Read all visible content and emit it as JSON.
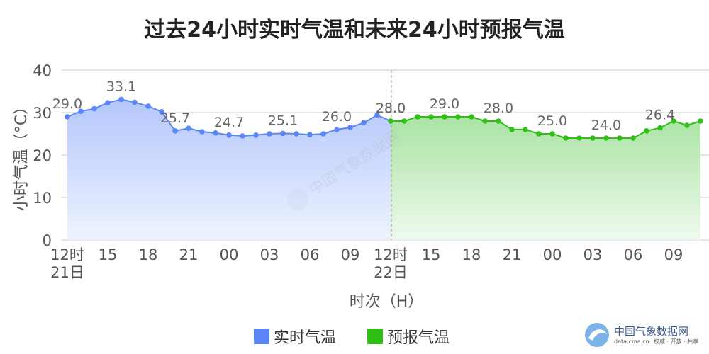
{
  "chart_data": {
    "type": "line",
    "title": "过去24小时实时气温和未来24小时预报气温",
    "xlabel": "时次（H）",
    "ylabel": "小时气温（°C）",
    "ylim": [
      0,
      40
    ],
    "yticks": [
      "0",
      "10",
      "20",
      "30",
      "40"
    ],
    "grid": true,
    "legend_position": "bottom",
    "xticks": [
      {
        "hour": 0,
        "label": "12时",
        "sub": "21日"
      },
      {
        "hour": 3,
        "label": "15",
        "sub": ""
      },
      {
        "hour": 6,
        "label": "18",
        "sub": ""
      },
      {
        "hour": 9,
        "label": "21",
        "sub": ""
      },
      {
        "hour": 12,
        "label": "00",
        "sub": ""
      },
      {
        "hour": 15,
        "label": "03",
        "sub": ""
      },
      {
        "hour": 18,
        "label": "06",
        "sub": ""
      },
      {
        "hour": 21,
        "label": "09",
        "sub": ""
      },
      {
        "hour": 24,
        "label": "12时",
        "sub": "22日"
      },
      {
        "hour": 27,
        "label": "15",
        "sub": ""
      },
      {
        "hour": 30,
        "label": "18",
        "sub": ""
      },
      {
        "hour": 33,
        "label": "21",
        "sub": ""
      },
      {
        "hour": 36,
        "label": "00",
        "sub": ""
      },
      {
        "hour": 39,
        "label": "03",
        "sub": ""
      },
      {
        "hour": 42,
        "label": "06",
        "sub": ""
      },
      {
        "hour": 45,
        "label": "09",
        "sub": ""
      }
    ],
    "series": [
      {
        "name": "实时气温",
        "color": "#5b86f7",
        "hours": [
          0,
          1,
          2,
          3,
          4,
          5,
          6,
          7,
          8,
          9,
          10,
          11,
          12,
          13,
          14,
          15,
          16,
          17,
          18,
          19,
          20,
          21,
          22,
          23,
          24
        ],
        "values": [
          29.0,
          30.3,
          30.9,
          32.3,
          33.1,
          32.4,
          31.5,
          30.2,
          25.7,
          26.3,
          25.5,
          25.2,
          24.7,
          24.5,
          24.7,
          25.0,
          25.1,
          25.0,
          24.8,
          25.0,
          26.0,
          26.5,
          27.6,
          29.4,
          28.0
        ],
        "labels": [
          {
            "hour": 0,
            "text": "29.0"
          },
          {
            "hour": 4,
            "text": "33.1"
          },
          {
            "hour": 8,
            "text": "25.7"
          },
          {
            "hour": 12,
            "text": "24.7"
          },
          {
            "hour": 16,
            "text": "25.1"
          },
          {
            "hour": 20,
            "text": "26.0"
          },
          {
            "hour": 24,
            "text": "28.0"
          }
        ]
      },
      {
        "name": "预报气温",
        "color": "#2fbf16",
        "hours": [
          24,
          25,
          26,
          27,
          28,
          29,
          30,
          31,
          32,
          33,
          34,
          35,
          36,
          37,
          38,
          39,
          40,
          41,
          42,
          43,
          44,
          45,
          46,
          47
        ],
        "values": [
          28.0,
          28.0,
          29.0,
          29.0,
          29.0,
          29.0,
          29.0,
          28.0,
          28.0,
          26.0,
          26.0,
          25.0,
          25.0,
          24.0,
          24.0,
          24.0,
          24.0,
          24.0,
          24.0,
          25.7,
          26.4,
          28.0,
          27.0,
          28.0
        ],
        "labels": [
          {
            "hour": 24,
            "text": "28.0"
          },
          {
            "hour": 28,
            "text": "29.0"
          },
          {
            "hour": 32,
            "text": "28.0"
          },
          {
            "hour": 36,
            "text": "25.0"
          },
          {
            "hour": 40,
            "text": "24.0"
          },
          {
            "hour": 44,
            "text": "26.4"
          }
        ]
      }
    ]
  },
  "legend": {
    "items": [
      {
        "label": "实时气温",
        "color": "#5b86f7"
      },
      {
        "label": "预报气温",
        "color": "#2fbf16"
      }
    ]
  },
  "watermark": {
    "center_text": "中国气象数据网",
    "logo_name": "中国气象数据网",
    "logo_url": "data.cma.cn",
    "logo_tagline": "权威 · 开放 · 共享"
  }
}
